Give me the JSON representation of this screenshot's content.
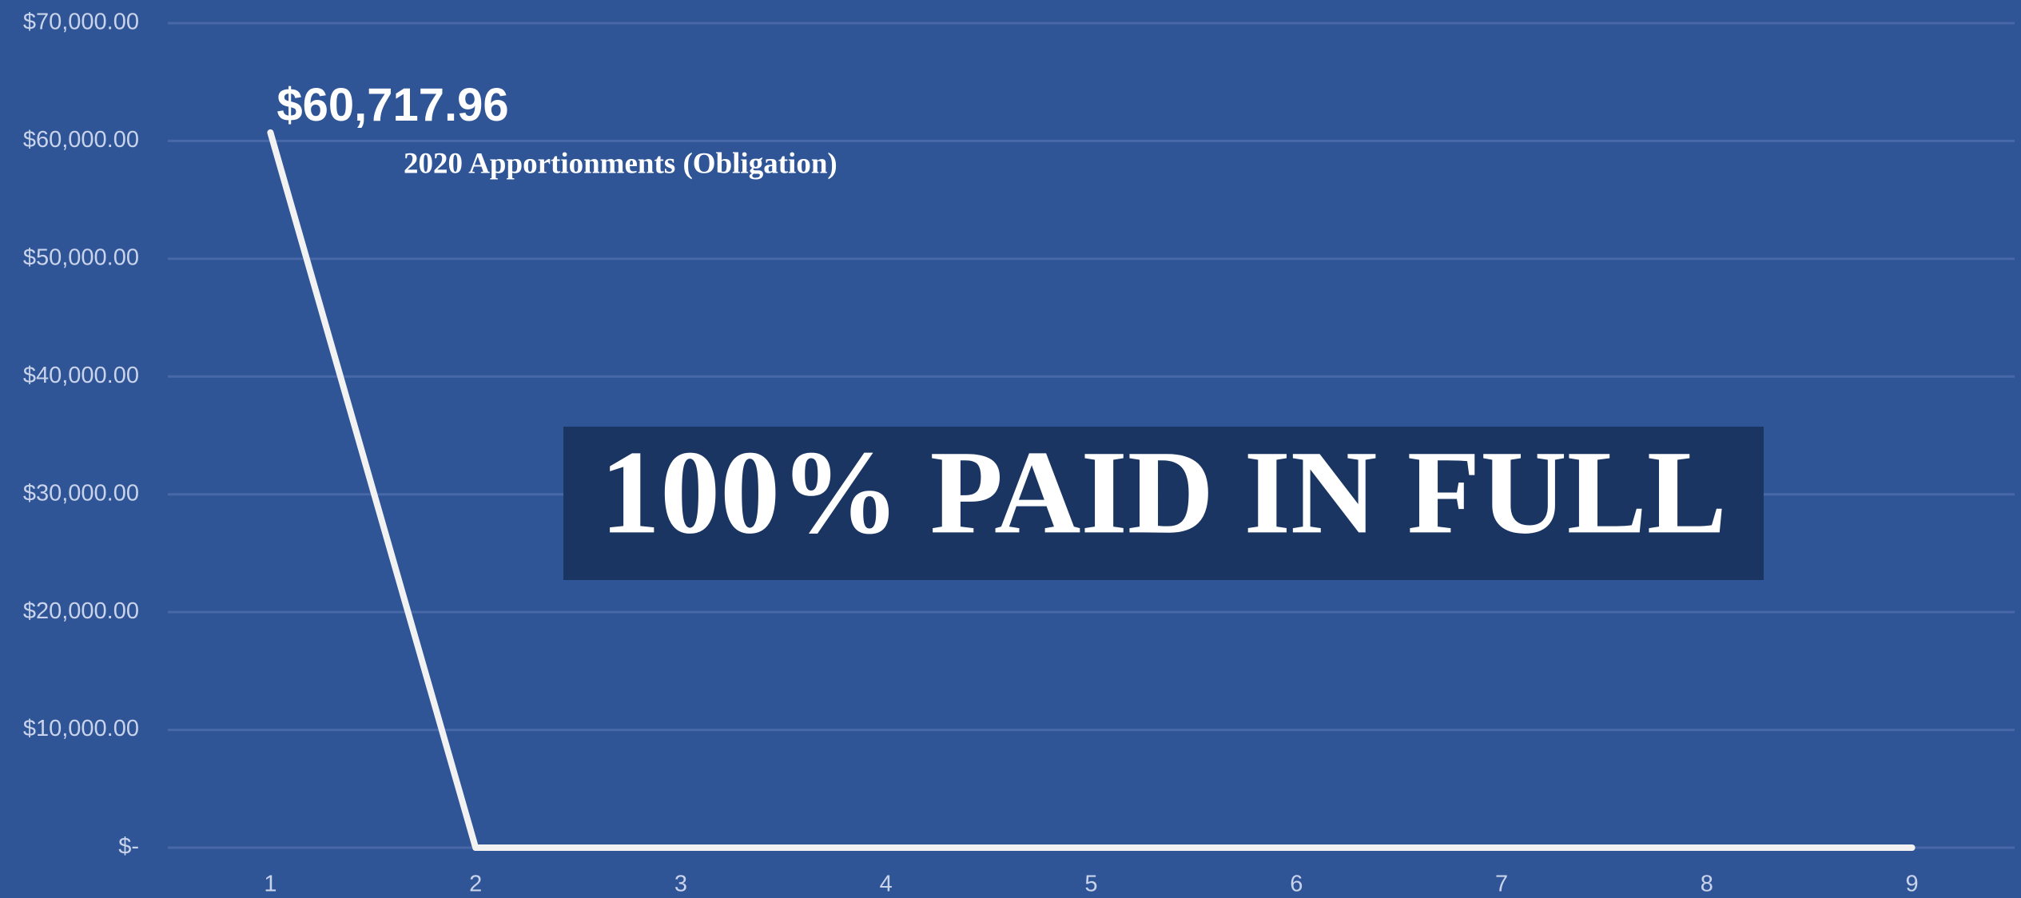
{
  "chart_data": {
    "type": "line",
    "x": [
      1,
      2,
      3,
      4,
      5,
      6,
      7,
      8,
      9
    ],
    "series": [
      {
        "color": "#f2f2f2",
        "values": [
          60717.96,
          0,
          0,
          0,
          0,
          0,
          0,
          0,
          0
        ],
        "value_labels": [
          "$60,717.96",
          null,
          null,
          null,
          null,
          null,
          null,
          null,
          null
        ]
      }
    ],
    "xlim": [
      0.5,
      9.5
    ],
    "xticks": [
      1,
      2,
      3,
      4,
      5,
      6,
      7,
      8,
      9
    ],
    "ylim": [
      0,
      70000
    ],
    "yticks": [
      {
        "value": 0,
        "label": "$-"
      },
      {
        "value": 10000,
        "label": "$10,000.00"
      },
      {
        "value": 20000,
        "label": "$20,000.00"
      },
      {
        "value": 30000,
        "label": "$30,000.00"
      },
      {
        "value": 40000,
        "label": "$40,000.00"
      },
      {
        "value": 50000,
        "label": "$50,000.00"
      },
      {
        "value": 60000,
        "label": "$60,000.00"
      },
      {
        "value": 70000,
        "label": "$70,000.00"
      }
    ],
    "grid": true,
    "annotations": [
      "2020 Apportionments (Obligation)",
      "100% PAID IN FULL"
    ]
  }
}
